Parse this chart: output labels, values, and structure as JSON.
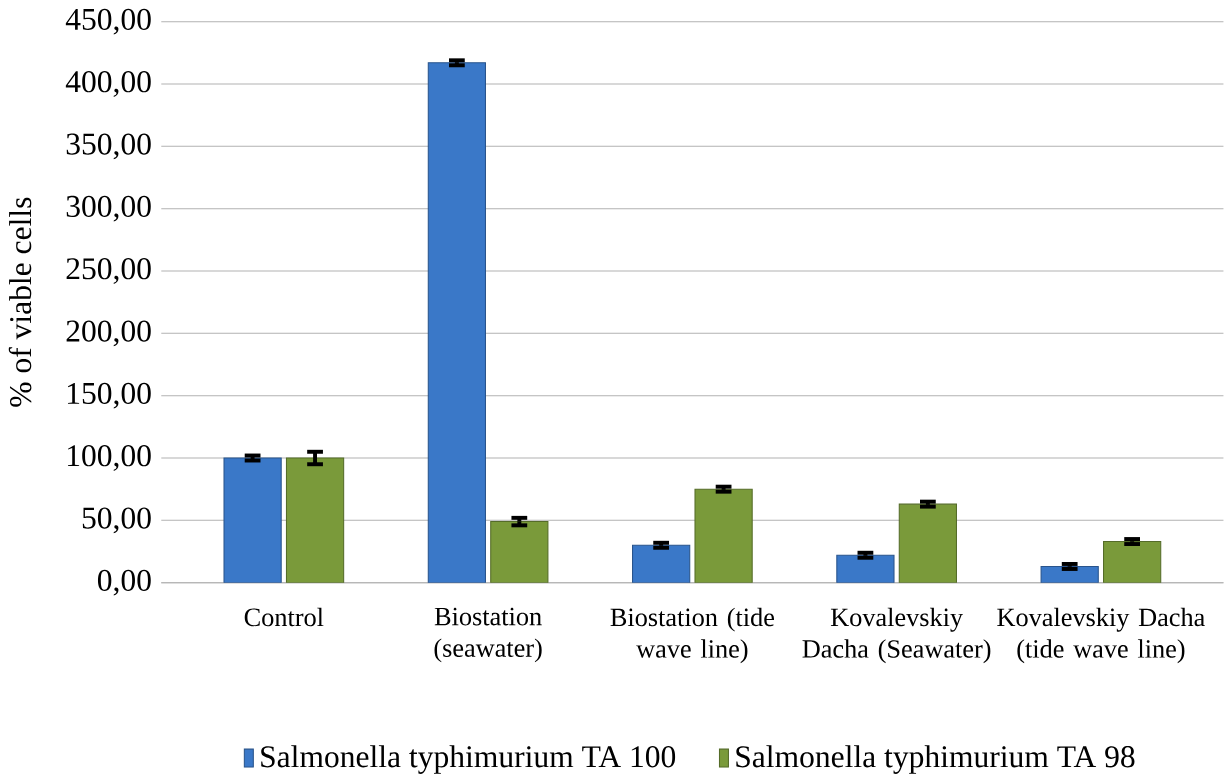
{
  "chart_data": {
    "type": "bar",
    "ylabel": "% of viable cells",
    "categories": [
      "Control",
      "Biostation (seawater)",
      "Biostation (tide wave line)",
      "Kovalevskiy Dacha (Seawater)",
      "Kovalevskiy Dacha (tide wave line)"
    ],
    "series": [
      {
        "name": "Salmonella typhimurium TA 100",
        "color": "#3a78c8",
        "values": [
          100,
          417,
          30,
          22,
          13
        ],
        "errors": [
          2,
          2,
          2,
          2,
          2
        ]
      },
      {
        "name": "Salmonella typhimurium TA 98",
        "color": "#7a9a3a",
        "values": [
          100,
          49,
          75,
          63,
          33
        ],
        "errors": [
          5,
          3,
          2,
          2,
          2
        ]
      }
    ],
    "ylim": [
      0,
      450
    ],
    "yticks": [
      {
        "value": 0,
        "label": "0,00"
      },
      {
        "value": 50,
        "label": "50,00"
      },
      {
        "value": 100,
        "label": "100,00"
      },
      {
        "value": 150,
        "label": "150,00"
      },
      {
        "value": 200,
        "label": "200,00"
      },
      {
        "value": 250,
        "label": "250,00"
      },
      {
        "value": 300,
        "label": "300,00"
      },
      {
        "value": 350,
        "label": "350,00"
      },
      {
        "value": 400,
        "label": "400,00"
      },
      {
        "value": 450,
        "label": "450,00"
      }
    ],
    "grid": "y",
    "legend": "bottom"
  }
}
